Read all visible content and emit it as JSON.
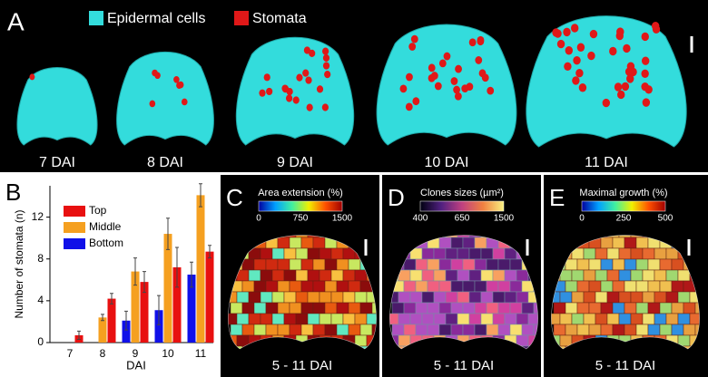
{
  "panel_a": {
    "label": "A",
    "legend": [
      {
        "name": "Epidermal cells",
        "color": "#33dcdc"
      },
      {
        "name": "Stomata",
        "color": "#e01818"
      }
    ],
    "stages": [
      "7 DAI",
      "8 DAI",
      "9 DAI",
      "10 DAI",
      "11 DAI"
    ]
  },
  "chart_data": {
    "type": "bar",
    "panel_label": "B",
    "xlabel": "DAI",
    "ylabel": "Number of stomata (n)",
    "categories": [
      "7",
      "8",
      "9",
      "10",
      "11"
    ],
    "series": [
      {
        "name": "Bottom",
        "color": "#1010e8",
        "values": [
          null,
          null,
          2.1,
          3.1,
          6.5
        ],
        "errors": [
          null,
          null,
          0.9,
          1.4,
          1.2
        ]
      },
      {
        "name": "Middle",
        "color": "#f5a020",
        "values": [
          null,
          2.4,
          6.8,
          10.4,
          14.1
        ],
        "errors": [
          null,
          0.3,
          1.3,
          1.5,
          1.1
        ]
      },
      {
        "name": "Top",
        "color": "#e81010",
        "values": [
          0.7,
          4.2,
          5.8,
          7.2,
          8.7
        ],
        "errors": [
          0.4,
          0.5,
          1.0,
          1.9,
          0.6
        ]
      }
    ],
    "legend_order": [
      2,
      1,
      0
    ],
    "legend": "upper left",
    "ylim": [
      0,
      15
    ],
    "yticks": [
      0,
      4,
      8,
      12
    ]
  },
  "panels": [
    {
      "label": "C",
      "colorbar_title": "Area extension (%)",
      "colorbar_ticks": [
        0,
        750,
        1500
      ],
      "caption": "5 - 11 DAI"
    },
    {
      "label": "D",
      "colorbar_title": "Clones sizes (µm²)",
      "colorbar_ticks": [
        400,
        650,
        1500
      ],
      "caption": "5 - 11 DAI"
    },
    {
      "label": "E",
      "colorbar_title": "Maximal growth (%)",
      "colorbar_ticks": [
        0,
        250,
        500
      ],
      "caption": "5 - 11 DAI"
    }
  ]
}
